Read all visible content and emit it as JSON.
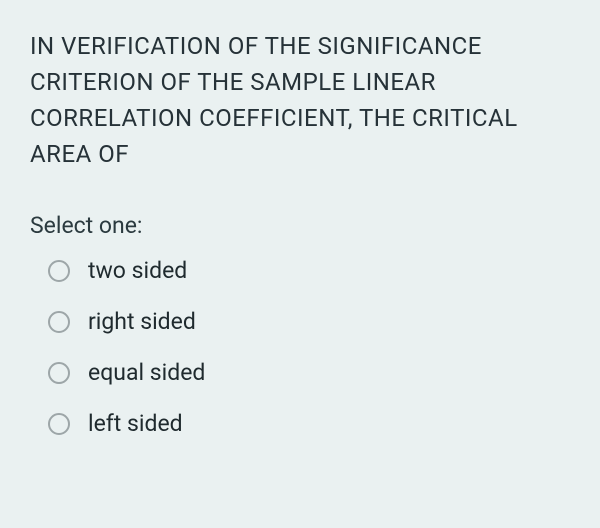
{
  "question": {
    "text": "IN VERIFICATION OF THE SIGNIFICANCE CRITERION OF THE SAMPLE LINEAR CORRELATION COEFFICIENT, THE CRITICAL AREA OF",
    "text_color": "#263238",
    "fontsize": 24
  },
  "prompt": {
    "text": "Select one:",
    "fontsize": 23,
    "text_color": "#2b3a3f"
  },
  "options": [
    {
      "label": "two sided",
      "selected": false
    },
    {
      "label": "right sided",
      "selected": false
    },
    {
      "label": "equal sided",
      "selected": false
    },
    {
      "label": "left sided",
      "selected": false
    }
  ],
  "styling": {
    "background_color": "#eaf1f1",
    "radio_border_color": "#9da6a8",
    "option_fontsize": 23,
    "option_text_color": "#1f2a2e",
    "radio_size": 22
  }
}
